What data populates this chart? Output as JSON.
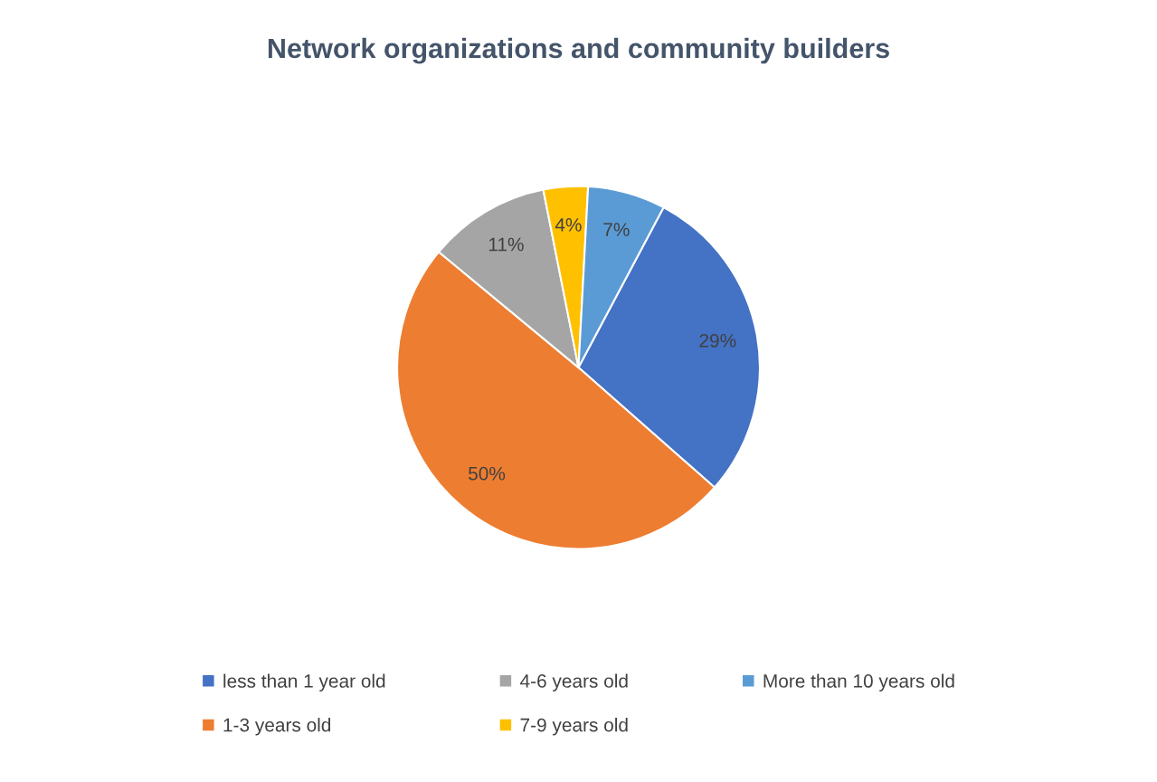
{
  "chart_data": {
    "type": "pie",
    "title": "Network organizations and community builders",
    "categories": [
      "less than 1 year old",
      "1-3 years old",
      "4-6 years old",
      "7-9 years old",
      "More than 10 years old"
    ],
    "values": [
      29,
      50,
      11,
      4,
      7
    ],
    "value_labels": [
      "29%",
      "50%",
      "11%",
      "4%",
      "7%"
    ],
    "colors": [
      "#4472c4",
      "#ed7d31",
      "#a5a5a5",
      "#ffc000",
      "#5b9bd5"
    ],
    "legend": "bottom"
  }
}
